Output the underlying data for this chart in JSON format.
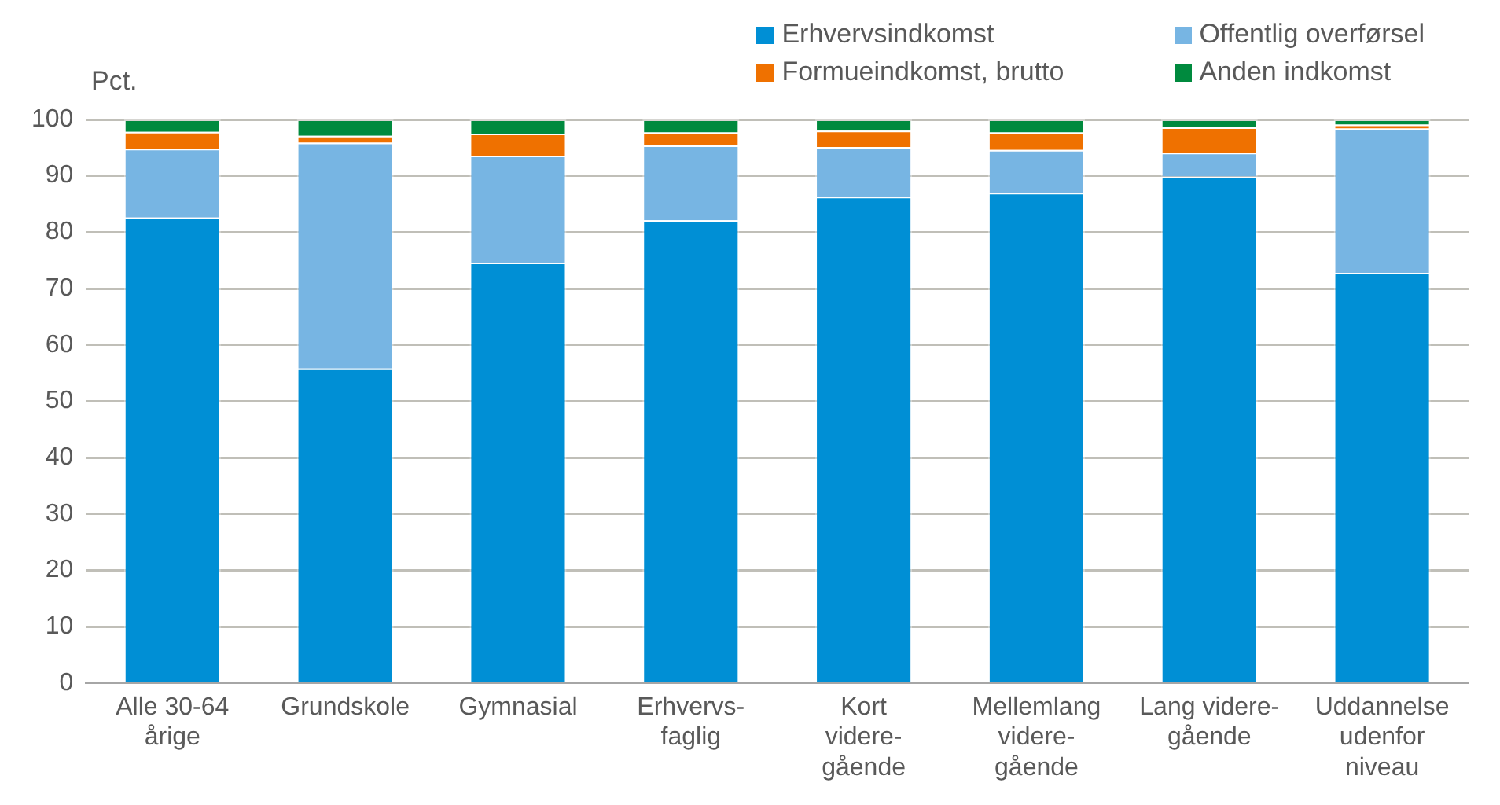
{
  "chart_data": {
    "type": "bar",
    "stacked": true,
    "ylabel": "Pct.",
    "categories": [
      "Alle 30-64\nårige",
      "Grundskole",
      "Gymnasial",
      "Erhvervs-\nfaglig",
      "Kort\nvidere-\ngående",
      "Mellemlang\nvidere-\ngående",
      "Lang videre-\ngående",
      "Uddannelse\nudenfor\nniveau"
    ],
    "series": [
      {
        "name": "Erhvervsindkomst",
        "color": "#008fd5",
        "values": [
          82.6,
          55.8,
          74.6,
          82.1,
          86.3,
          87.0,
          89.9,
          72.8
        ]
      },
      {
        "name": "Offentlig overførsel",
        "color": "#77b5e3",
        "values": [
          12.2,
          40.1,
          19.0,
          13.3,
          8.8,
          7.6,
          4.2,
          25.6
        ]
      },
      {
        "name": "Formueindkomst, brutto",
        "color": "#ef7100",
        "values": [
          3.0,
          1.2,
          3.9,
          2.3,
          2.9,
          3.1,
          4.5,
          0.7
        ]
      },
      {
        "name": "Anden indkomst",
        "color": "#008a3e",
        "values": [
          2.2,
          2.9,
          2.5,
          2.3,
          2.0,
          2.3,
          1.4,
          0.9
        ]
      }
    ],
    "ylim": [
      0,
      100
    ],
    "yticks": [
      0,
      10,
      20,
      30,
      40,
      50,
      60,
      70,
      80,
      90,
      100
    ],
    "grid": "y",
    "legend": "top right"
  }
}
